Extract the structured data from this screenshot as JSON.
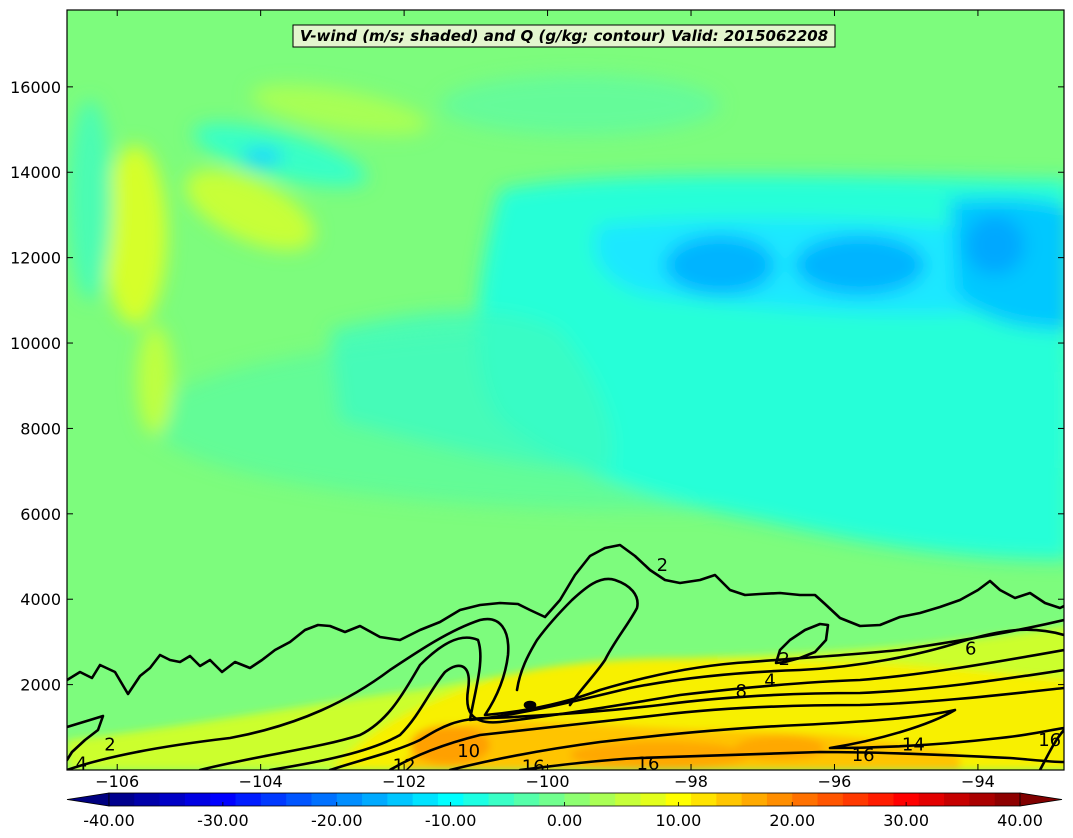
{
  "chart_data": {
    "type": "heatmap",
    "title": "V-wind (m/s; shaded) and Q (g/kg; contour) Valid: 2015062208",
    "xlabel": "",
    "ylabel": "",
    "xlim": [
      -106.7,
      -92.8
    ],
    "ylim": [
      0,
      17800
    ],
    "x_ticks": [
      -106,
      -104,
      -102,
      -100,
      -98,
      -96,
      -94
    ],
    "y_ticks": [
      2000,
      4000,
      6000,
      8000,
      10000,
      12000,
      14000,
      16000
    ],
    "colorbar": {
      "range": [
        -40,
        40
      ],
      "ticks": [
        -40,
        -30,
        -20,
        -10,
        0,
        10,
        20,
        30,
        40
      ],
      "tick_labels": [
        "-40.00",
        "-30.00",
        "-20.00",
        "-10.00",
        "0.00",
        "10.00",
        "20.00",
        "30.00",
        "40.00"
      ],
      "extend": "both",
      "colormap": "jet",
      "levels": 36
    },
    "contour_labels": [
      {
        "text": "2",
        "x": -106.1,
        "y": 600
      },
      {
        "text": "4",
        "x": -106.5,
        "y": 150
      },
      {
        "text": "2",
        "x": -98.4,
        "y": 4800
      },
      {
        "text": "2",
        "x": -96.7,
        "y": 2600
      },
      {
        "text": "4",
        "x": -96.9,
        "y": 2100
      },
      {
        "text": "8",
        "x": -97.3,
        "y": 1850
      },
      {
        "text": "6",
        "x": -94.1,
        "y": 2850
      },
      {
        "text": "10",
        "x": -101.1,
        "y": 450
      },
      {
        "text": "16",
        "x": -100.2,
        "y": 80
      },
      {
        "text": "16",
        "x": -98.6,
        "y": 150
      },
      {
        "text": "16",
        "x": -95.6,
        "y": 350
      },
      {
        "text": "14",
        "x": -94.9,
        "y": 600
      },
      {
        "text": "12",
        "x": -102.0,
        "y": 100
      },
      {
        "text": "16",
        "x": -93.0,
        "y": 700
      }
    ]
  },
  "colors": {
    "background_field": "#7fff7a",
    "contour": "#000000"
  }
}
